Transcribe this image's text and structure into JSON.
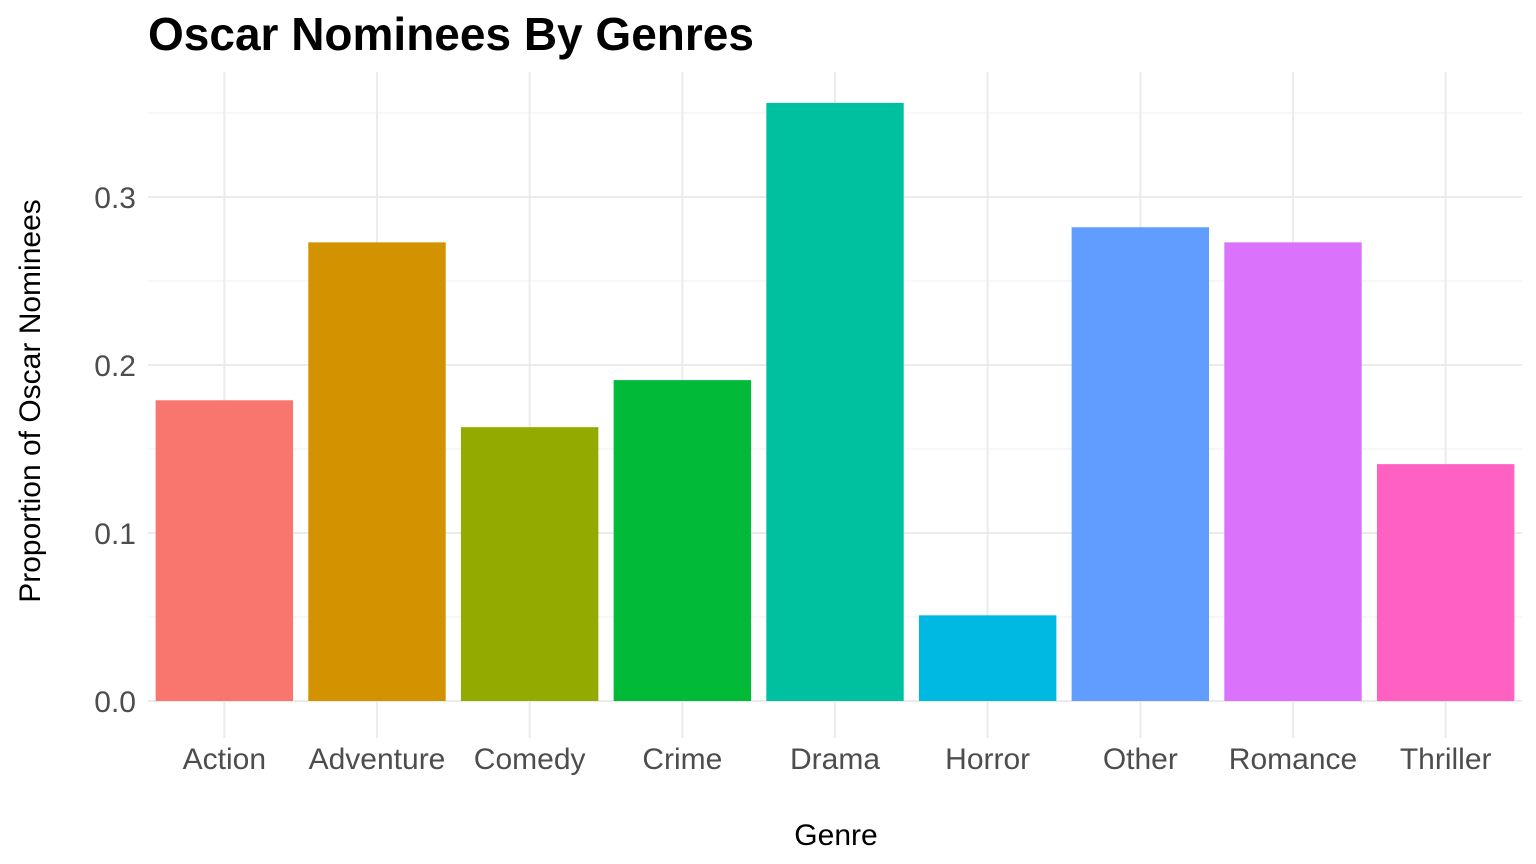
{
  "chart_data": {
    "type": "bar",
    "title": "Oscar Nominees By Genres",
    "xlabel": "Genre",
    "ylabel": "Proportion of Oscar Nominees",
    "categories": [
      "Action",
      "Adventure",
      "Comedy",
      "Crime",
      "Drama",
      "Horror",
      "Other",
      "Romance",
      "Thriller"
    ],
    "values": [
      0.179,
      0.273,
      0.163,
      0.191,
      0.356,
      0.051,
      0.282,
      0.273,
      0.141
    ],
    "colors": [
      "#F8766D",
      "#D39200",
      "#93AA00",
      "#00BA38",
      "#00C19F",
      "#00B9E3",
      "#619CFF",
      "#DB72FB",
      "#FF61C3"
    ],
    "yticks": [
      "0.0",
      "0.1",
      "0.2",
      "0.3"
    ],
    "ylim": [
      0,
      0.36
    ],
    "grid": true,
    "legend": "none"
  }
}
